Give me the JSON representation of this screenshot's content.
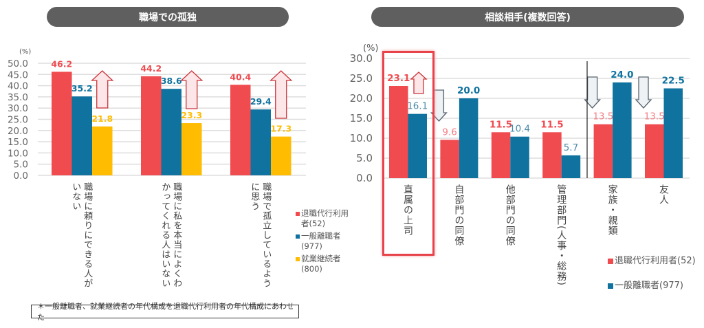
{
  "chart_data": [
    {
      "type": "bar",
      "title": "職場での孤独",
      "ylabel": "(%)",
      "ylim": [
        0,
        50
      ],
      "yticks": [
        "0.0",
        "5.0",
        "10.0",
        "15.0",
        "20.0",
        "25.0",
        "30.0",
        "35.0",
        "40.0",
        "45.0",
        "50.0"
      ],
      "grid": true,
      "legend_position": "right",
      "categories": [
        "職場に頼りにできる人が\nいない",
        "職場に私を本当によくわ\nかってくれる人はいない",
        "職場で孤立しているよう\nに思う"
      ],
      "series": [
        {
          "name": "退職代行利用者(52)",
          "color": "#f04b4f",
          "values": [
            46.2,
            44.2,
            40.4
          ],
          "labels": [
            "46.2",
            "44.2",
            "40.4"
          ]
        },
        {
          "name": "一般離職者(977)",
          "color": "#0f729f",
          "values": [
            35.2,
            38.6,
            29.4
          ],
          "labels": [
            "35.2",
            "38.6",
            "29.4"
          ]
        },
        {
          "name": "就業継続者(800)",
          "color": "#ffbc00",
          "values": [
            21.8,
            23.3,
            17.3
          ],
          "labels": [
            "21.8",
            "23.3",
            "17.3"
          ]
        }
      ],
      "annotations": [
        {
          "group": 0,
          "arrow": "up"
        },
        {
          "group": 1,
          "arrow": "up"
        },
        {
          "group": 2,
          "arrow": "up"
        }
      ]
    },
    {
      "type": "bar",
      "title": "相談相手(複数回答)",
      "ylabel": "(%)",
      "ylim": [
        0,
        30
      ],
      "yticks": [
        "0.0",
        "5.0",
        "10.0",
        "15.0",
        "20.0",
        "25.0",
        "30.0"
      ],
      "grid": true,
      "legend_position": "bottom-right",
      "categories": [
        "直属の上司",
        "自部門の同僚",
        "他部門の同僚",
        "管理部門(人事・総務)",
        "家族・親類",
        "友人"
      ],
      "highlighted_category": "直属の上司",
      "series": [
        {
          "name": "退職代行利用者(52)",
          "color": "#f04b4f",
          "values": [
            23.1,
            9.6,
            11.5,
            11.5,
            13.5,
            13.5
          ],
          "labels": [
            "23.1",
            "9.6",
            "11.5",
            "11.5",
            "13.5",
            "13.5"
          ],
          "bold": [
            true,
            false,
            true,
            true,
            false,
            false
          ]
        },
        {
          "name": "一般離職者(977)",
          "color": "#0f729f",
          "values": [
            16.1,
            20.0,
            10.4,
            5.7,
            24.0,
            22.5
          ],
          "labels": [
            "16.1",
            "20.0",
            "10.4",
            "5.7",
            "24.0",
            "22.5"
          ],
          "bold": [
            false,
            true,
            false,
            false,
            true,
            true
          ]
        }
      ],
      "annotations": [
        {
          "group": 0,
          "arrow": "up"
        },
        {
          "group": 1,
          "arrow": "down"
        },
        {
          "group": 4,
          "arrow": "down"
        },
        {
          "group": 5,
          "arrow": "down"
        }
      ]
    }
  ],
  "footnote": "＊一般離職者、就業継続者の年代構成を退職代行利用者の年代構成にあわせた"
}
